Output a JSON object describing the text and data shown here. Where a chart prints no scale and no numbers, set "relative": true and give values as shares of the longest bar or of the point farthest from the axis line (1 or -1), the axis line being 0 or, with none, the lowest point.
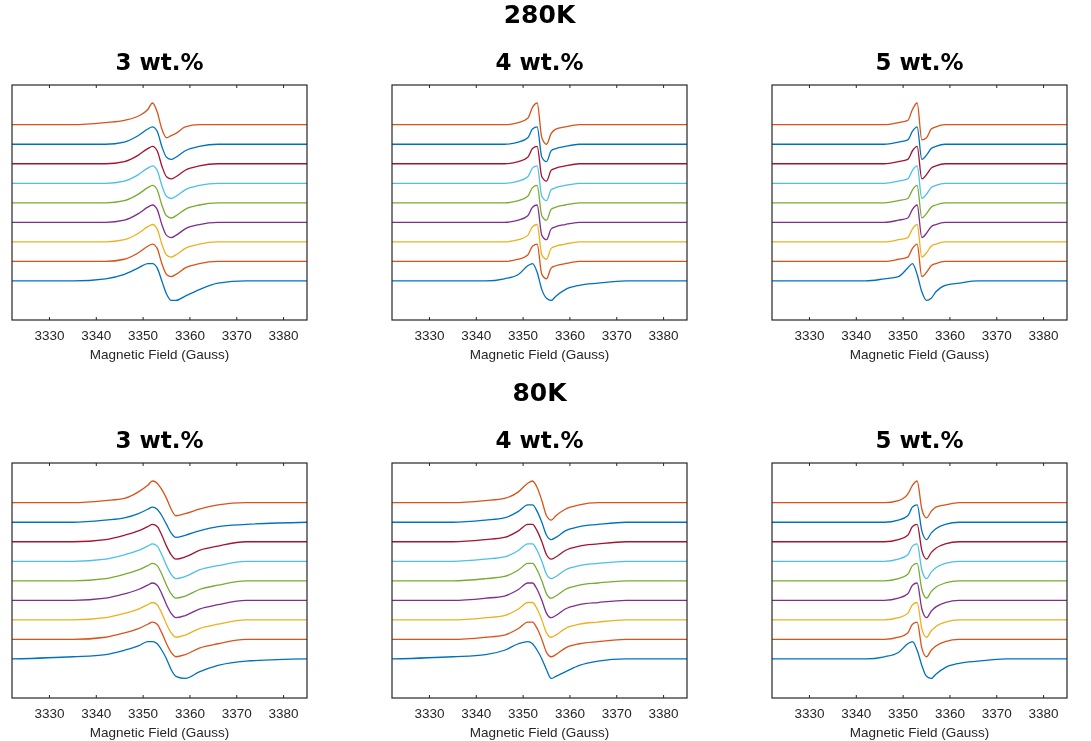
{
  "chart_data": [
    {
      "type": "line",
      "title": "3 wt.%",
      "xlabel": "Magnetic Field (Gauss)",
      "relative": true,
      "xlim": [
        3322,
        3385
      ],
      "xticks": [
        3330,
        3340,
        3350,
        3360,
        3370,
        3380
      ],
      "x": [
        3322,
        3335,
        3342,
        3346,
        3349,
        3351,
        3352,
        3353,
        3354,
        3355,
        3356,
        3357,
        3359,
        3362,
        3366,
        3372,
        3385
      ],
      "series": [
        {
          "color": "#0072bd",
          "values": [
            0.18,
            0.18,
            0.19,
            0.21,
            0.24,
            0.26,
            0.26,
            0.24,
            0.18,
            0.12,
            0.09,
            0.09,
            0.11,
            0.14,
            0.17,
            0.18,
            0.18
          ]
        },
        {
          "color": "#d95319",
          "values": [
            0.27,
            0.27,
            0.27,
            0.28,
            0.31,
            0.34,
            0.35,
            0.33,
            0.26,
            0.21,
            0.2,
            0.21,
            0.24,
            0.26,
            0.27,
            0.27,
            0.27
          ]
        },
        {
          "color": "#edb120",
          "values": [
            0.36,
            0.36,
            0.36,
            0.37,
            0.4,
            0.43,
            0.44,
            0.42,
            0.35,
            0.3,
            0.29,
            0.3,
            0.33,
            0.35,
            0.36,
            0.36,
            0.36
          ]
        },
        {
          "color": "#7e2f8e",
          "values": [
            0.45,
            0.45,
            0.45,
            0.46,
            0.49,
            0.52,
            0.53,
            0.51,
            0.44,
            0.39,
            0.38,
            0.39,
            0.42,
            0.44,
            0.45,
            0.45,
            0.45
          ]
        },
        {
          "color": "#77ac30",
          "values": [
            0.54,
            0.54,
            0.54,
            0.55,
            0.58,
            0.61,
            0.62,
            0.6,
            0.53,
            0.48,
            0.47,
            0.48,
            0.51,
            0.53,
            0.54,
            0.54,
            0.54
          ]
        },
        {
          "color": "#4dbeee",
          "values": [
            0.63,
            0.63,
            0.63,
            0.64,
            0.67,
            0.7,
            0.71,
            0.69,
            0.62,
            0.57,
            0.56,
            0.57,
            0.6,
            0.62,
            0.63,
            0.63,
            0.63
          ]
        },
        {
          "color": "#a2142f",
          "values": [
            0.72,
            0.72,
            0.72,
            0.73,
            0.76,
            0.79,
            0.8,
            0.78,
            0.71,
            0.66,
            0.65,
            0.66,
            0.69,
            0.71,
            0.72,
            0.72,
            0.72
          ]
        },
        {
          "color": "#0072bd",
          "values": [
            0.81,
            0.81,
            0.81,
            0.82,
            0.85,
            0.88,
            0.89,
            0.87,
            0.8,
            0.75,
            0.74,
            0.75,
            0.78,
            0.8,
            0.81,
            0.81,
            0.81
          ]
        },
        {
          "color": "#d95319",
          "values": [
            0.9,
            0.9,
            0.91,
            0.92,
            0.94,
            0.97,
            1,
            0.96,
            0.88,
            0.84,
            0.85,
            0.86,
            0.89,
            0.9,
            0.9,
            0.9,
            0.9
          ]
        }
      ]
    },
    {
      "type": "line",
      "title": "4 wt.%",
      "annotations": [
        "280K"
      ],
      "xlabel": "Magnetic Field (Gauss)",
      "relative": true,
      "xlim": [
        3322,
        3385
      ],
      "xticks": [
        3330,
        3340,
        3350,
        3360,
        3370,
        3380
      ],
      "x": [
        3322,
        3335,
        3342,
        3346,
        3349,
        3351,
        3352,
        3353,
        3354,
        3355,
        3356,
        3357,
        3359,
        3362,
        3366,
        3372,
        3385
      ],
      "series": [
        {
          "color": "#0072bd",
          "values": [
            0.18,
            0.18,
            0.18,
            0.19,
            0.21,
            0.25,
            0.26,
            0.22,
            0.14,
            0.1,
            0.09,
            0.11,
            0.14,
            0.16,
            0.17,
            0.18,
            0.18
          ]
        },
        {
          "color": "#d95319",
          "values": [
            0.27,
            0.27,
            0.27,
            0.27,
            0.28,
            0.3,
            0.34,
            0.35,
            0.21,
            0.19,
            0.24,
            0.25,
            0.26,
            0.27,
            0.27,
            0.27,
            0.27
          ]
        },
        {
          "color": "#edb120",
          "values": [
            0.36,
            0.36,
            0.36,
            0.36,
            0.37,
            0.39,
            0.43,
            0.44,
            0.3,
            0.28,
            0.33,
            0.34,
            0.35,
            0.36,
            0.36,
            0.36,
            0.36
          ]
        },
        {
          "color": "#7e2f8e",
          "values": [
            0.45,
            0.45,
            0.45,
            0.45,
            0.46,
            0.48,
            0.52,
            0.53,
            0.39,
            0.37,
            0.42,
            0.43,
            0.44,
            0.45,
            0.45,
            0.45,
            0.45
          ]
        },
        {
          "color": "#77ac30",
          "values": [
            0.54,
            0.54,
            0.54,
            0.54,
            0.55,
            0.57,
            0.61,
            0.62,
            0.48,
            0.46,
            0.51,
            0.52,
            0.53,
            0.54,
            0.54,
            0.54,
            0.54
          ]
        },
        {
          "color": "#4dbeee",
          "values": [
            0.63,
            0.63,
            0.63,
            0.63,
            0.64,
            0.66,
            0.7,
            0.71,
            0.57,
            0.55,
            0.6,
            0.61,
            0.62,
            0.63,
            0.63,
            0.63,
            0.63
          ]
        },
        {
          "color": "#a2142f",
          "values": [
            0.72,
            0.72,
            0.72,
            0.72,
            0.73,
            0.75,
            0.79,
            0.8,
            0.66,
            0.64,
            0.69,
            0.7,
            0.71,
            0.72,
            0.72,
            0.72,
            0.72
          ]
        },
        {
          "color": "#0072bd",
          "values": [
            0.81,
            0.81,
            0.81,
            0.81,
            0.82,
            0.84,
            0.88,
            0.89,
            0.75,
            0.73,
            0.78,
            0.79,
            0.8,
            0.81,
            0.81,
            0.81,
            0.81
          ]
        },
        {
          "color": "#d95319",
          "values": [
            0.9,
            0.9,
            0.9,
            0.9,
            0.91,
            0.93,
            0.98,
            1,
            0.84,
            0.81,
            0.86,
            0.88,
            0.89,
            0.9,
            0.9,
            0.9,
            0.9
          ]
        }
      ]
    },
    {
      "type": "line",
      "title": "5 wt.%",
      "xlabel": "Magnetic Field (Gauss)",
      "relative": true,
      "xlim": [
        3322,
        3385
      ],
      "xticks": [
        3330,
        3340,
        3350,
        3360,
        3370,
        3380
      ],
      "x": [
        3322,
        3335,
        3342,
        3346,
        3349,
        3351,
        3352,
        3353,
        3354,
        3355,
        3356,
        3357,
        3359,
        3362,
        3366,
        3372,
        3385
      ],
      "series": [
        {
          "color": "#0072bd",
          "values": [
            0.18,
            0.18,
            0.18,
            0.19,
            0.2,
            0.24,
            0.26,
            0.21,
            0.13,
            0.09,
            0.1,
            0.13,
            0.16,
            0.17,
            0.18,
            0.18,
            0.18
          ]
        },
        {
          "color": "#d95319",
          "values": [
            0.27,
            0.27,
            0.27,
            0.27,
            0.28,
            0.29,
            0.33,
            0.35,
            0.2,
            0.22,
            0.25,
            0.26,
            0.27,
            0.27,
            0.27,
            0.27,
            0.27
          ]
        },
        {
          "color": "#edb120",
          "values": [
            0.36,
            0.36,
            0.36,
            0.36,
            0.37,
            0.38,
            0.42,
            0.44,
            0.29,
            0.31,
            0.34,
            0.35,
            0.36,
            0.36,
            0.36,
            0.36,
            0.36
          ]
        },
        {
          "color": "#7e2f8e",
          "values": [
            0.45,
            0.45,
            0.45,
            0.45,
            0.46,
            0.47,
            0.51,
            0.53,
            0.38,
            0.4,
            0.43,
            0.44,
            0.45,
            0.45,
            0.45,
            0.45,
            0.45
          ]
        },
        {
          "color": "#77ac30",
          "values": [
            0.54,
            0.54,
            0.54,
            0.54,
            0.55,
            0.56,
            0.6,
            0.62,
            0.47,
            0.49,
            0.52,
            0.53,
            0.54,
            0.54,
            0.54,
            0.54,
            0.54
          ]
        },
        {
          "color": "#4dbeee",
          "values": [
            0.63,
            0.63,
            0.63,
            0.63,
            0.64,
            0.65,
            0.69,
            0.71,
            0.56,
            0.58,
            0.61,
            0.62,
            0.63,
            0.63,
            0.63,
            0.63,
            0.63
          ]
        },
        {
          "color": "#a2142f",
          "values": [
            0.72,
            0.72,
            0.72,
            0.72,
            0.73,
            0.74,
            0.78,
            0.8,
            0.65,
            0.67,
            0.7,
            0.71,
            0.72,
            0.72,
            0.72,
            0.72,
            0.72
          ]
        },
        {
          "color": "#0072bd",
          "values": [
            0.81,
            0.81,
            0.81,
            0.81,
            0.82,
            0.83,
            0.87,
            0.89,
            0.74,
            0.76,
            0.79,
            0.8,
            0.81,
            0.81,
            0.81,
            0.81,
            0.81
          ]
        },
        {
          "color": "#d95319",
          "values": [
            0.9,
            0.9,
            0.9,
            0.9,
            0.91,
            0.92,
            0.97,
            1,
            0.83,
            0.84,
            0.88,
            0.89,
            0.9,
            0.9,
            0.9,
            0.9,
            0.9
          ]
        }
      ]
    },
    {
      "type": "line",
      "title": "3 wt.%",
      "xlabel": "Magnetic Field (Gauss)",
      "relative": true,
      "xlim": [
        3322,
        3385
      ],
      "xticks": [
        3330,
        3340,
        3350,
        3360,
        3370,
        3380
      ],
      "x": [
        3322,
        3335,
        3342,
        3346,
        3349,
        3351,
        3352,
        3353,
        3354,
        3355,
        3356,
        3357,
        3359,
        3362,
        3366,
        3372,
        3385
      ],
      "series": [
        {
          "color": "#0072bd",
          "values": [
            0.18,
            0.19,
            0.2,
            0.22,
            0.24,
            0.26,
            0.26,
            0.25,
            0.22,
            0.18,
            0.13,
            0.1,
            0.09,
            0.12,
            0.15,
            0.17,
            0.18
          ]
        },
        {
          "color": "#d95319",
          "values": [
            0.27,
            0.27,
            0.28,
            0.3,
            0.32,
            0.34,
            0.35,
            0.34,
            0.3,
            0.25,
            0.21,
            0.19,
            0.2,
            0.23,
            0.25,
            0.27,
            0.27
          ]
        },
        {
          "color": "#edb120",
          "values": [
            0.36,
            0.36,
            0.37,
            0.39,
            0.41,
            0.43,
            0.44,
            0.43,
            0.39,
            0.34,
            0.3,
            0.28,
            0.29,
            0.32,
            0.34,
            0.36,
            0.36
          ]
        },
        {
          "color": "#7e2f8e",
          "values": [
            0.45,
            0.45,
            0.46,
            0.48,
            0.5,
            0.52,
            0.53,
            0.52,
            0.48,
            0.43,
            0.39,
            0.37,
            0.38,
            0.41,
            0.43,
            0.45,
            0.45
          ]
        },
        {
          "color": "#77ac30",
          "values": [
            0.54,
            0.54,
            0.55,
            0.57,
            0.59,
            0.61,
            0.62,
            0.61,
            0.57,
            0.52,
            0.48,
            0.46,
            0.47,
            0.5,
            0.52,
            0.54,
            0.54
          ]
        },
        {
          "color": "#4dbeee",
          "values": [
            0.63,
            0.63,
            0.64,
            0.66,
            0.68,
            0.7,
            0.71,
            0.7,
            0.66,
            0.61,
            0.57,
            0.55,
            0.56,
            0.59,
            0.61,
            0.63,
            0.63
          ]
        },
        {
          "color": "#a2142f",
          "values": [
            0.72,
            0.72,
            0.73,
            0.75,
            0.77,
            0.79,
            0.8,
            0.79,
            0.75,
            0.7,
            0.66,
            0.64,
            0.65,
            0.68,
            0.7,
            0.72,
            0.72
          ]
        },
        {
          "color": "#0072bd",
          "values": [
            0.81,
            0.81,
            0.82,
            0.83,
            0.85,
            0.87,
            0.88,
            0.87,
            0.84,
            0.8,
            0.76,
            0.74,
            0.75,
            0.77,
            0.79,
            0.8,
            0.81
          ]
        },
        {
          "color": "#d95319",
          "values": [
            0.9,
            0.9,
            0.91,
            0.92,
            0.95,
            0.98,
            1,
            0.99,
            0.96,
            0.92,
            0.87,
            0.84,
            0.85,
            0.87,
            0.89,
            0.9,
            0.9
          ]
        }
      ]
    },
    {
      "type": "line",
      "title": "4 wt.%",
      "annotations": [
        "80K"
      ],
      "xlabel": "Magnetic Field (Gauss)",
      "relative": true,
      "xlim": [
        3322,
        3385
      ],
      "xticks": [
        3330,
        3340,
        3350,
        3360,
        3370,
        3380
      ],
      "x": [
        3322,
        3335,
        3342,
        3346,
        3349,
        3351,
        3352,
        3353,
        3354,
        3355,
        3356,
        3357,
        3359,
        3362,
        3366,
        3372,
        3385
      ],
      "series": [
        {
          "color": "#0072bd",
          "values": [
            0.18,
            0.19,
            0.2,
            0.22,
            0.25,
            0.26,
            0.25,
            0.22,
            0.18,
            0.13,
            0.09,
            0.1,
            0.12,
            0.15,
            0.17,
            0.18,
            0.18
          ]
        },
        {
          "color": "#d95319",
          "values": [
            0.27,
            0.27,
            0.28,
            0.29,
            0.32,
            0.35,
            0.35,
            0.32,
            0.27,
            0.21,
            0.19,
            0.2,
            0.23,
            0.25,
            0.26,
            0.27,
            0.27
          ]
        },
        {
          "color": "#edb120",
          "values": [
            0.36,
            0.36,
            0.37,
            0.38,
            0.41,
            0.44,
            0.44,
            0.41,
            0.36,
            0.3,
            0.28,
            0.29,
            0.32,
            0.34,
            0.35,
            0.36,
            0.36
          ]
        },
        {
          "color": "#7e2f8e",
          "values": [
            0.45,
            0.45,
            0.46,
            0.47,
            0.5,
            0.53,
            0.53,
            0.5,
            0.45,
            0.39,
            0.37,
            0.38,
            0.41,
            0.43,
            0.44,
            0.45,
            0.45
          ]
        },
        {
          "color": "#77ac30",
          "values": [
            0.54,
            0.54,
            0.55,
            0.56,
            0.59,
            0.62,
            0.62,
            0.59,
            0.54,
            0.48,
            0.46,
            0.47,
            0.5,
            0.52,
            0.53,
            0.54,
            0.54
          ]
        },
        {
          "color": "#4dbeee",
          "values": [
            0.63,
            0.63,
            0.64,
            0.65,
            0.68,
            0.71,
            0.71,
            0.68,
            0.63,
            0.57,
            0.55,
            0.56,
            0.59,
            0.61,
            0.62,
            0.63,
            0.63
          ]
        },
        {
          "color": "#a2142f",
          "values": [
            0.72,
            0.72,
            0.73,
            0.74,
            0.77,
            0.8,
            0.8,
            0.77,
            0.72,
            0.66,
            0.64,
            0.65,
            0.68,
            0.7,
            0.71,
            0.72,
            0.72
          ]
        },
        {
          "color": "#0072bd",
          "values": [
            0.81,
            0.81,
            0.82,
            0.83,
            0.86,
            0.89,
            0.89,
            0.86,
            0.81,
            0.75,
            0.73,
            0.74,
            0.77,
            0.79,
            0.8,
            0.81,
            0.81
          ]
        },
        {
          "color": "#d95319",
          "values": [
            0.9,
            0.9,
            0.91,
            0.92,
            0.95,
            0.99,
            1,
            0.97,
            0.91,
            0.84,
            0.82,
            0.84,
            0.87,
            0.89,
            0.9,
            0.9,
            0.9
          ]
        }
      ]
    },
    {
      "type": "line",
      "title": "5 wt.%",
      "xlabel": "Magnetic Field (Gauss)",
      "relative": true,
      "xlim": [
        3322,
        3385
      ],
      "xticks": [
        3330,
        3340,
        3350,
        3360,
        3370,
        3380
      ],
      "x": [
        3322,
        3335,
        3342,
        3346,
        3349,
        3351,
        3352,
        3353,
        3354,
        3355,
        3356,
        3357,
        3359,
        3362,
        3366,
        3372,
        3385
      ],
      "series": [
        {
          "color": "#0072bd",
          "values": [
            0.18,
            0.18,
            0.18,
            0.19,
            0.21,
            0.25,
            0.26,
            0.22,
            0.15,
            0.1,
            0.09,
            0.11,
            0.14,
            0.16,
            0.17,
            0.18,
            0.18
          ]
        },
        {
          "color": "#d95319",
          "values": [
            0.27,
            0.27,
            0.27,
            0.27,
            0.28,
            0.3,
            0.34,
            0.35,
            0.23,
            0.19,
            0.22,
            0.24,
            0.26,
            0.27,
            0.27,
            0.27,
            0.27
          ]
        },
        {
          "color": "#edb120",
          "values": [
            0.36,
            0.36,
            0.36,
            0.36,
            0.37,
            0.39,
            0.43,
            0.44,
            0.32,
            0.28,
            0.31,
            0.33,
            0.35,
            0.36,
            0.36,
            0.36,
            0.36
          ]
        },
        {
          "color": "#7e2f8e",
          "values": [
            0.45,
            0.45,
            0.45,
            0.45,
            0.46,
            0.48,
            0.52,
            0.53,
            0.41,
            0.37,
            0.4,
            0.42,
            0.44,
            0.45,
            0.45,
            0.45,
            0.45
          ]
        },
        {
          "color": "#77ac30",
          "values": [
            0.54,
            0.54,
            0.54,
            0.54,
            0.55,
            0.57,
            0.61,
            0.62,
            0.5,
            0.46,
            0.49,
            0.51,
            0.53,
            0.54,
            0.54,
            0.54,
            0.54
          ]
        },
        {
          "color": "#4dbeee",
          "values": [
            0.63,
            0.63,
            0.63,
            0.63,
            0.64,
            0.66,
            0.7,
            0.71,
            0.59,
            0.55,
            0.58,
            0.6,
            0.62,
            0.63,
            0.63,
            0.63,
            0.63
          ]
        },
        {
          "color": "#a2142f",
          "values": [
            0.72,
            0.72,
            0.72,
            0.72,
            0.73,
            0.75,
            0.79,
            0.8,
            0.68,
            0.64,
            0.67,
            0.69,
            0.71,
            0.72,
            0.72,
            0.72,
            0.72
          ]
        },
        {
          "color": "#0072bd",
          "values": [
            0.81,
            0.81,
            0.81,
            0.81,
            0.82,
            0.84,
            0.88,
            0.89,
            0.77,
            0.73,
            0.76,
            0.78,
            0.8,
            0.81,
            0.81,
            0.81,
            0.81
          ]
        },
        {
          "color": "#d95319",
          "values": [
            0.9,
            0.9,
            0.9,
            0.9,
            0.91,
            0.94,
            0.98,
            1,
            0.87,
            0.83,
            0.86,
            0.88,
            0.89,
            0.9,
            0.9,
            0.9,
            0.9
          ]
        }
      ]
    }
  ]
}
